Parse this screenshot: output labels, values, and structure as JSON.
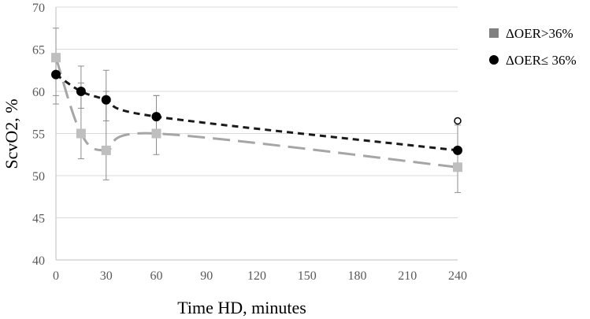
{
  "chart_data": {
    "type": "line",
    "title": "",
    "xlabel": "Time HD, minutes",
    "ylabel": "ScvO2, %",
    "xlim": [
      0,
      240
    ],
    "ylim": [
      40,
      70
    ],
    "x_ticks": [
      0,
      30,
      60,
      90,
      120,
      150,
      180,
      210,
      240
    ],
    "y_ticks": [
      40,
      45,
      50,
      55,
      60,
      65,
      70
    ],
    "grid": "horizontal",
    "legend_position": "right",
    "series": [
      {
        "name": "ΔOER>36%",
        "marker": "square",
        "line": "long-dash",
        "color": "#a6a6a6",
        "x": [
          0,
          15,
          30,
          60,
          240
        ],
        "y": [
          64,
          55,
          53,
          55,
          51
        ],
        "error_lower": [
          5.5,
          3,
          3.5,
          2.5,
          3
        ],
        "error_upper": [
          3.5,
          8,
          9.5,
          4.5,
          2
        ]
      },
      {
        "name": "ΔOER≤ 36%",
        "marker": "circle",
        "line": "short-dash",
        "color": "#1a1a1a",
        "x": [
          0,
          15,
          30,
          60,
          240
        ],
        "y": [
          62,
          60,
          59,
          57,
          53
        ],
        "error_lower": [
          2.5,
          2,
          2.5,
          2.5,
          1.5
        ],
        "error_upper": [
          2.5,
          1,
          1,
          2.5,
          3
        ]
      }
    ],
    "annotations": [
      {
        "x": 240,
        "y": 56.5,
        "marker": "open-circle"
      }
    ]
  }
}
